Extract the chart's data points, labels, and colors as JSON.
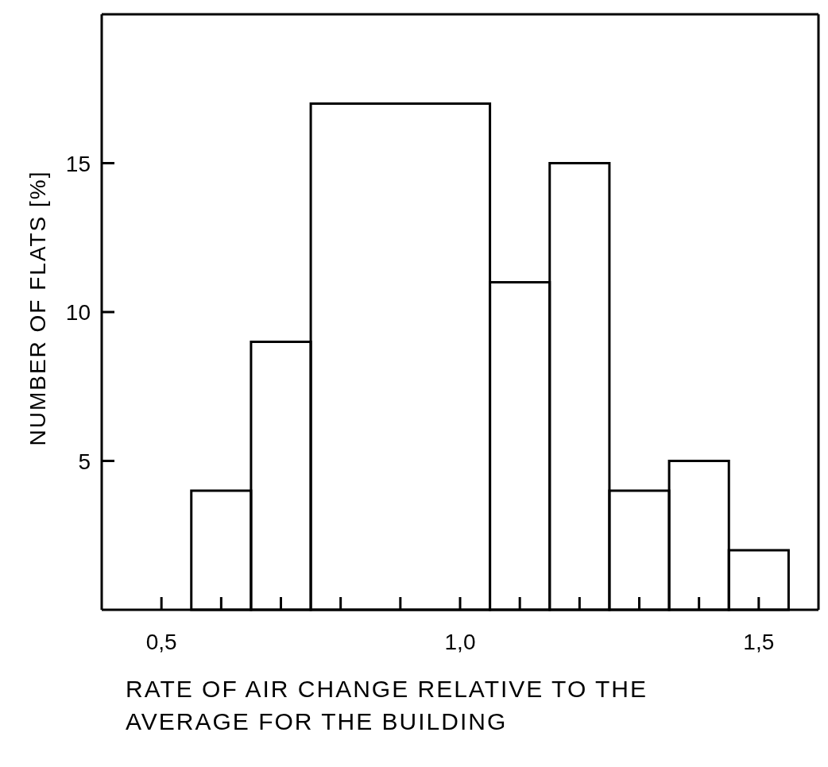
{
  "chart_data": {
    "type": "histogram",
    "xlabel": "RATE OF AIR CHANGE RELATIVE TO THE AVERAGE FOR THE BUILDING",
    "ylabel": "NUMBER OF FLATS [%]",
    "bins": [
      0.55,
      0.65,
      0.75,
      1.05,
      1.15,
      1.25,
      1.35,
      1.45,
      1.55
    ],
    "values": [
      4,
      9,
      17,
      11,
      15,
      4,
      5,
      2
    ],
    "color": "#000000",
    "xlim": [
      0.4,
      1.6
    ],
    "xticks": [
      {
        "value": 0.5,
        "label": "0,5"
      },
      {
        "value": 0.6,
        "label": null
      },
      {
        "value": 0.7,
        "label": null
      },
      {
        "value": 0.8,
        "label": null
      },
      {
        "value": 0.9,
        "label": null
      },
      {
        "value": 1.0,
        "label": "1,0"
      },
      {
        "value": 1.1,
        "label": null
      },
      {
        "value": 1.2,
        "label": null
      },
      {
        "value": 1.3,
        "label": null
      },
      {
        "value": 1.4,
        "label": null
      },
      {
        "value": 1.5,
        "label": "1,5"
      }
    ],
    "ylim": [
      0,
      20
    ],
    "yticks": [
      5,
      10,
      15
    ]
  }
}
